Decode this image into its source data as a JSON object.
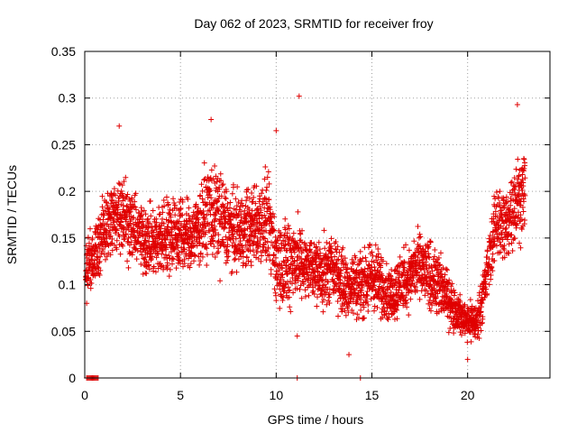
{
  "chart_data": {
    "type": "scatter",
    "title": "Day 062 of 2023, SRMTID for receiver froy",
    "xlabel": "GPS time / hours",
    "ylabel": "SRMTID / TECUs",
    "xlim": [
      0,
      24.3
    ],
    "ylim": [
      0,
      0.35
    ],
    "xticks": [
      0,
      5,
      10,
      15,
      20
    ],
    "yticks": [
      0,
      0.05,
      0.1,
      0.15,
      0.2,
      0.25,
      0.3,
      0.35
    ],
    "ytick_labels": [
      "0",
      "0.05",
      "0.1",
      "0.15",
      "0.2",
      "0.25",
      "0.3",
      "0.35"
    ],
    "grid": true,
    "series": [
      {
        "name": "SRMTID",
        "marker": "+",
        "color": "#e00000",
        "envelope": {
          "hours": [
            0.0,
            0.5,
            1.0,
            1.5,
            2.0,
            2.5,
            3.0,
            3.5,
            4.0,
            4.5,
            5.0,
            5.5,
            6.0,
            6.5,
            7.0,
            7.5,
            8.0,
            8.5,
            9.0,
            9.5,
            10.0,
            10.5,
            11.0,
            11.5,
            12.0,
            12.5,
            13.0,
            13.5,
            14.0,
            14.5,
            15.0,
            15.5,
            16.0,
            16.5,
            17.0,
            17.5,
            18.0,
            18.5,
            19.0,
            19.5,
            20.0,
            20.5,
            21.0,
            21.5,
            22.0,
            22.5,
            23.0
          ],
          "typical": [
            0.12,
            0.13,
            0.16,
            0.17,
            0.18,
            0.16,
            0.15,
            0.145,
            0.15,
            0.155,
            0.155,
            0.15,
            0.165,
            0.18,
            0.17,
            0.16,
            0.155,
            0.16,
            0.165,
            0.17,
            0.13,
            0.12,
            0.13,
            0.12,
            0.12,
            0.11,
            0.12,
            0.1,
            0.1,
            0.1,
            0.11,
            0.1,
            0.09,
            0.1,
            0.11,
            0.12,
            0.11,
            0.1,
            0.085,
            0.07,
            0.06,
            0.06,
            0.11,
            0.17,
            0.16,
            0.19,
            0.2
          ],
          "spread": [
            0.04,
            0.05,
            0.05,
            0.06,
            0.06,
            0.05,
            0.05,
            0.05,
            0.06,
            0.06,
            0.06,
            0.05,
            0.06,
            0.07,
            0.07,
            0.06,
            0.06,
            0.06,
            0.06,
            0.07,
            0.06,
            0.07,
            0.06,
            0.05,
            0.05,
            0.05,
            0.05,
            0.05,
            0.05,
            0.05,
            0.05,
            0.05,
            0.04,
            0.05,
            0.05,
            0.05,
            0.05,
            0.05,
            0.04,
            0.03,
            0.03,
            0.03,
            0.04,
            0.05,
            0.06,
            0.06,
            0.06
          ]
        },
        "zero_values_hours": [
          0.1,
          0.15,
          0.2,
          0.25,
          0.3,
          0.35,
          0.4,
          0.45,
          0.5,
          0.55,
          0.6,
          0.65,
          0.7,
          11.1,
          14.4
        ],
        "highlight_points": [
          [
            0.1,
            0.08
          ],
          [
            1.8,
            0.27
          ],
          [
            6.6,
            0.277
          ],
          [
            11.2,
            0.302
          ],
          [
            10.0,
            0.265
          ],
          [
            22.6,
            0.293
          ],
          [
            20.0,
            0.02
          ],
          [
            13.8,
            0.025
          ],
          [
            11.1,
            0.045
          ]
        ]
      }
    ]
  }
}
